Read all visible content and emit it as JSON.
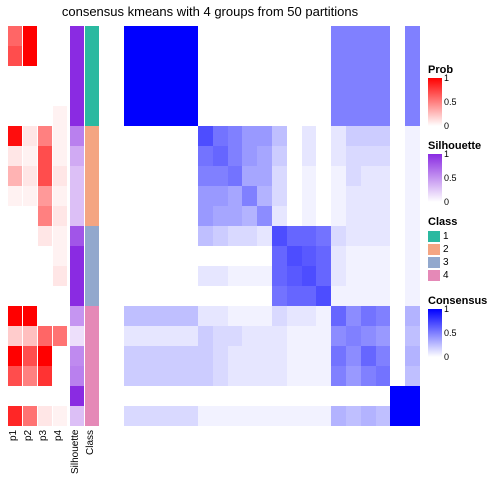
{
  "title": "consensus kmeans with 4 groups from 50 partitions",
  "background_color": "#ffffff",
  "n": 20,
  "annotation_labels": [
    "p1",
    "p2",
    "p3",
    "p4",
    "Silhouette",
    "Class"
  ],
  "annotations": {
    "p1": {
      "palette": "prob",
      "values": [
        0.6,
        0.7,
        0,
        0,
        0,
        0.95,
        0.1,
        0.3,
        0.05,
        0,
        0,
        0,
        0,
        0,
        1,
        0.2,
        1,
        0.7,
        0,
        0.85
      ]
    },
    "p2": {
      "palette": "prob",
      "values": [
        1,
        1,
        0,
        0,
        0,
        0.1,
        0.05,
        0.1,
        0.05,
        0,
        0,
        0,
        0,
        0,
        1,
        0.25,
        0.7,
        0.5,
        0,
        0.55
      ]
    },
    "p3": {
      "palette": "prob",
      "values": [
        0,
        0,
        0,
        0,
        0,
        0.5,
        0.7,
        0.7,
        0.4,
        0.5,
        0.1,
        0,
        0,
        0,
        0,
        0.6,
        1,
        0.8,
        0,
        0.1
      ]
    },
    "p4": {
      "palette": "prob",
      "values": [
        0,
        0,
        0,
        0,
        0.05,
        0.05,
        0.05,
        0.1,
        0.05,
        0.1,
        0.05,
        0.05,
        0.1,
        0,
        0,
        0.55,
        0,
        0,
        0,
        0.05
      ]
    },
    "Silhouette": {
      "palette": "sil",
      "values": [
        1,
        1,
        1,
        1,
        1,
        0.6,
        0.4,
        0.3,
        0.3,
        0.3,
        0.8,
        1,
        1,
        1,
        0.5,
        0.15,
        0.55,
        0.6,
        1,
        0.3
      ]
    },
    "Class": {
      "palette": "class",
      "values": [
        1,
        1,
        1,
        1,
        1,
        2,
        2,
        2,
        2,
        2,
        3,
        3,
        3,
        3,
        4,
        4,
        4,
        4,
        4,
        4
      ]
    }
  },
  "palettes": {
    "prob": {
      "low": "#ffffff",
      "high": "#ff0000"
    },
    "sil": {
      "low": "#ffffff",
      "high": "#8a2be2"
    },
    "cons": {
      "low": "#ffffff",
      "high": "#0000ff"
    },
    "class": {
      "1": "#2bb9a0",
      "2": "#f4a582",
      "3": "#92a8cd",
      "4": "#e589b7"
    }
  },
  "consensus": [
    [
      1,
      1,
      1,
      1,
      1,
      0,
      0,
      0,
      0,
      0,
      0,
      0,
      0,
      0,
      0.5,
      0.5,
      0.5,
      0.5,
      0,
      0.5
    ],
    [
      1,
      1,
      1,
      1,
      1,
      0,
      0,
      0,
      0,
      0,
      0,
      0,
      0,
      0,
      0.5,
      0.5,
      0.5,
      0.5,
      0,
      0.5
    ],
    [
      1,
      1,
      1,
      1,
      1,
      0,
      0,
      0,
      0,
      0,
      0,
      0,
      0,
      0,
      0.5,
      0.5,
      0.5,
      0.5,
      0,
      0.5
    ],
    [
      1,
      1,
      1,
      1,
      1,
      0,
      0,
      0,
      0,
      0,
      0,
      0,
      0,
      0,
      0.5,
      0.5,
      0.5,
      0.5,
      0,
      0.5
    ],
    [
      1,
      1,
      1,
      1,
      1,
      0,
      0,
      0,
      0,
      0,
      0,
      0,
      0,
      0,
      0.5,
      0.5,
      0.5,
      0.5,
      0,
      0.5
    ],
    [
      0,
      0,
      0,
      0,
      0,
      0.7,
      0.55,
      0.5,
      0.4,
      0.4,
      0.25,
      0,
      0.1,
      0,
      0.1,
      0.2,
      0.2,
      0.2,
      0,
      0.05
    ],
    [
      0,
      0,
      0,
      0,
      0,
      0.55,
      0.6,
      0.5,
      0.4,
      0.35,
      0.2,
      0,
      0.1,
      0,
      0.1,
      0.15,
      0.15,
      0.15,
      0,
      0.05
    ],
    [
      0,
      0,
      0,
      0,
      0,
      0.5,
      0.5,
      0.55,
      0.35,
      0.35,
      0.15,
      0,
      0.05,
      0,
      0.05,
      0.15,
      0.1,
      0.1,
      0,
      0.05
    ],
    [
      0,
      0,
      0,
      0,
      0,
      0.4,
      0.4,
      0.35,
      0.5,
      0.3,
      0.15,
      0,
      0.05,
      0,
      0.05,
      0.1,
      0.1,
      0.1,
      0,
      0.05
    ],
    [
      0,
      0,
      0,
      0,
      0,
      0.4,
      0.35,
      0.35,
      0.3,
      0.45,
      0.1,
      0,
      0.05,
      0,
      0.05,
      0.1,
      0.1,
      0.1,
      0,
      0.05
    ],
    [
      0,
      0,
      0,
      0,
      0,
      0.25,
      0.2,
      0.15,
      0.15,
      0.1,
      0.7,
      0.6,
      0.6,
      0.55,
      0.15,
      0.1,
      0.1,
      0.1,
      0,
      0.05
    ],
    [
      0,
      0,
      0,
      0,
      0,
      0,
      0,
      0,
      0,
      0,
      0.6,
      0.7,
      0.65,
      0.6,
      0.1,
      0.05,
      0.05,
      0.05,
      0,
      0.05
    ],
    [
      0,
      0,
      0,
      0,
      0,
      0.1,
      0.1,
      0.05,
      0.05,
      0.05,
      0.6,
      0.65,
      0.7,
      0.6,
      0.1,
      0.05,
      0.05,
      0.05,
      0,
      0.05
    ],
    [
      0,
      0,
      0,
      0,
      0,
      0,
      0,
      0,
      0,
      0,
      0.55,
      0.6,
      0.6,
      0.7,
      0.05,
      0.05,
      0.05,
      0.05,
      0,
      0.05
    ],
    [
      0.25,
      0.25,
      0.25,
      0.25,
      0.25,
      0.1,
      0.1,
      0.05,
      0.05,
      0.05,
      0.15,
      0.1,
      0.1,
      0.05,
      0.6,
      0.45,
      0.55,
      0.5,
      0,
      0.3
    ],
    [
      0.1,
      0.1,
      0.1,
      0.1,
      0.1,
      0.2,
      0.15,
      0.15,
      0.1,
      0.1,
      0.1,
      0.05,
      0.05,
      0.05,
      0.45,
      0.5,
      0.45,
      0.4,
      0,
      0.25
    ],
    [
      0.2,
      0.2,
      0.2,
      0.2,
      0.2,
      0.2,
      0.15,
      0.1,
      0.1,
      0.1,
      0.1,
      0.05,
      0.05,
      0.05,
      0.55,
      0.45,
      0.6,
      0.5,
      0,
      0.3
    ],
    [
      0.2,
      0.2,
      0.2,
      0.2,
      0.2,
      0.2,
      0.15,
      0.1,
      0.1,
      0.1,
      0.1,
      0.05,
      0.05,
      0.05,
      0.5,
      0.4,
      0.5,
      0.55,
      0,
      0.25
    ],
    [
      0,
      0,
      0,
      0,
      0,
      0,
      0,
      0,
      0,
      0,
      0,
      0,
      0,
      0,
      0,
      0,
      0,
      0,
      1,
      1
    ],
    [
      0.15,
      0.15,
      0.15,
      0.15,
      0.15,
      0.05,
      0.05,
      0.05,
      0.05,
      0.05,
      0.05,
      0.05,
      0.05,
      0.05,
      0.3,
      0.25,
      0.3,
      0.25,
      1,
      1
    ]
  ],
  "legends": {
    "Prob": {
      "type": "gradient",
      "palette": "prob",
      "ticks": [
        "1",
        "0.5",
        "0"
      ]
    },
    "Silhouette": {
      "type": "gradient",
      "palette": "sil",
      "ticks": [
        "1",
        "0.5",
        "0"
      ]
    },
    "Class": {
      "type": "categorical",
      "palette": "class",
      "items": [
        "1",
        "2",
        "3",
        "4"
      ]
    },
    "Consensus": {
      "type": "gradient",
      "palette": "cons",
      "ticks": [
        "1",
        "0.5",
        "0"
      ]
    }
  },
  "fontsize": {
    "title": 13,
    "legend_title": 11,
    "legend_tick": 9,
    "ann_label": 10
  }
}
